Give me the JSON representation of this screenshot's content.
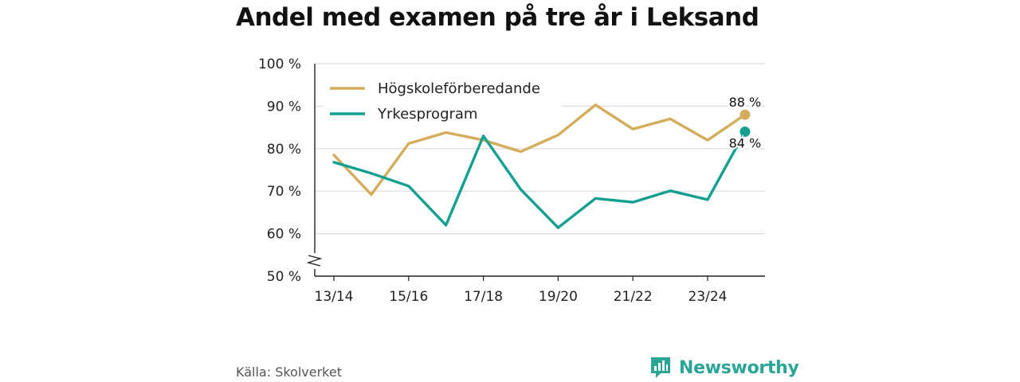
{
  "title": "Andel med examen på tre år i Leksand",
  "source": "Källa: Skolverket",
  "brand": {
    "name": "Newsworthy",
    "icon": "newsworthy-logo-icon",
    "color": "#2aa596"
  },
  "chart_data": {
    "type": "line",
    "title": "Andel med examen på tre år i Leksand",
    "xlabel": "",
    "ylabel": "",
    "x": [
      "13/14",
      "14/15",
      "15/16",
      "16/17",
      "17/18",
      "18/19",
      "19/20",
      "20/21",
      "21/22",
      "22/23",
      "23/24",
      "24/25"
    ],
    "x_tick_labels": [
      "13/14",
      "15/16",
      "17/18",
      "19/20",
      "21/22",
      "23/24"
    ],
    "y_ticks": [
      50,
      60,
      70,
      80,
      90,
      100
    ],
    "y_tick_labels": [
      "50 %",
      "60 %",
      "70 %",
      "80 %",
      "90 %",
      "100 %"
    ],
    "ylim": [
      50,
      100
    ],
    "y_axis_break": true,
    "grid": true,
    "legend_position": "top-left",
    "series": [
      {
        "name": "Högskoleförberedande",
        "color": "#d4ad5c",
        "values": [
          78.5,
          69.2,
          81.2,
          83.8,
          82.0,
          79.3,
          83.2,
          90.3,
          84.6,
          87.0,
          82.0,
          88.0
        ],
        "end_label": "88 %"
      },
      {
        "name": "Yrkesprogram",
        "color": "#14a091",
        "values": [
          76.8,
          74.2,
          71.2,
          62.0,
          83.0,
          70.4,
          61.4,
          68.3,
          67.4,
          70.1,
          68.0,
          84.0
        ],
        "end_label": "84 %"
      }
    ]
  }
}
